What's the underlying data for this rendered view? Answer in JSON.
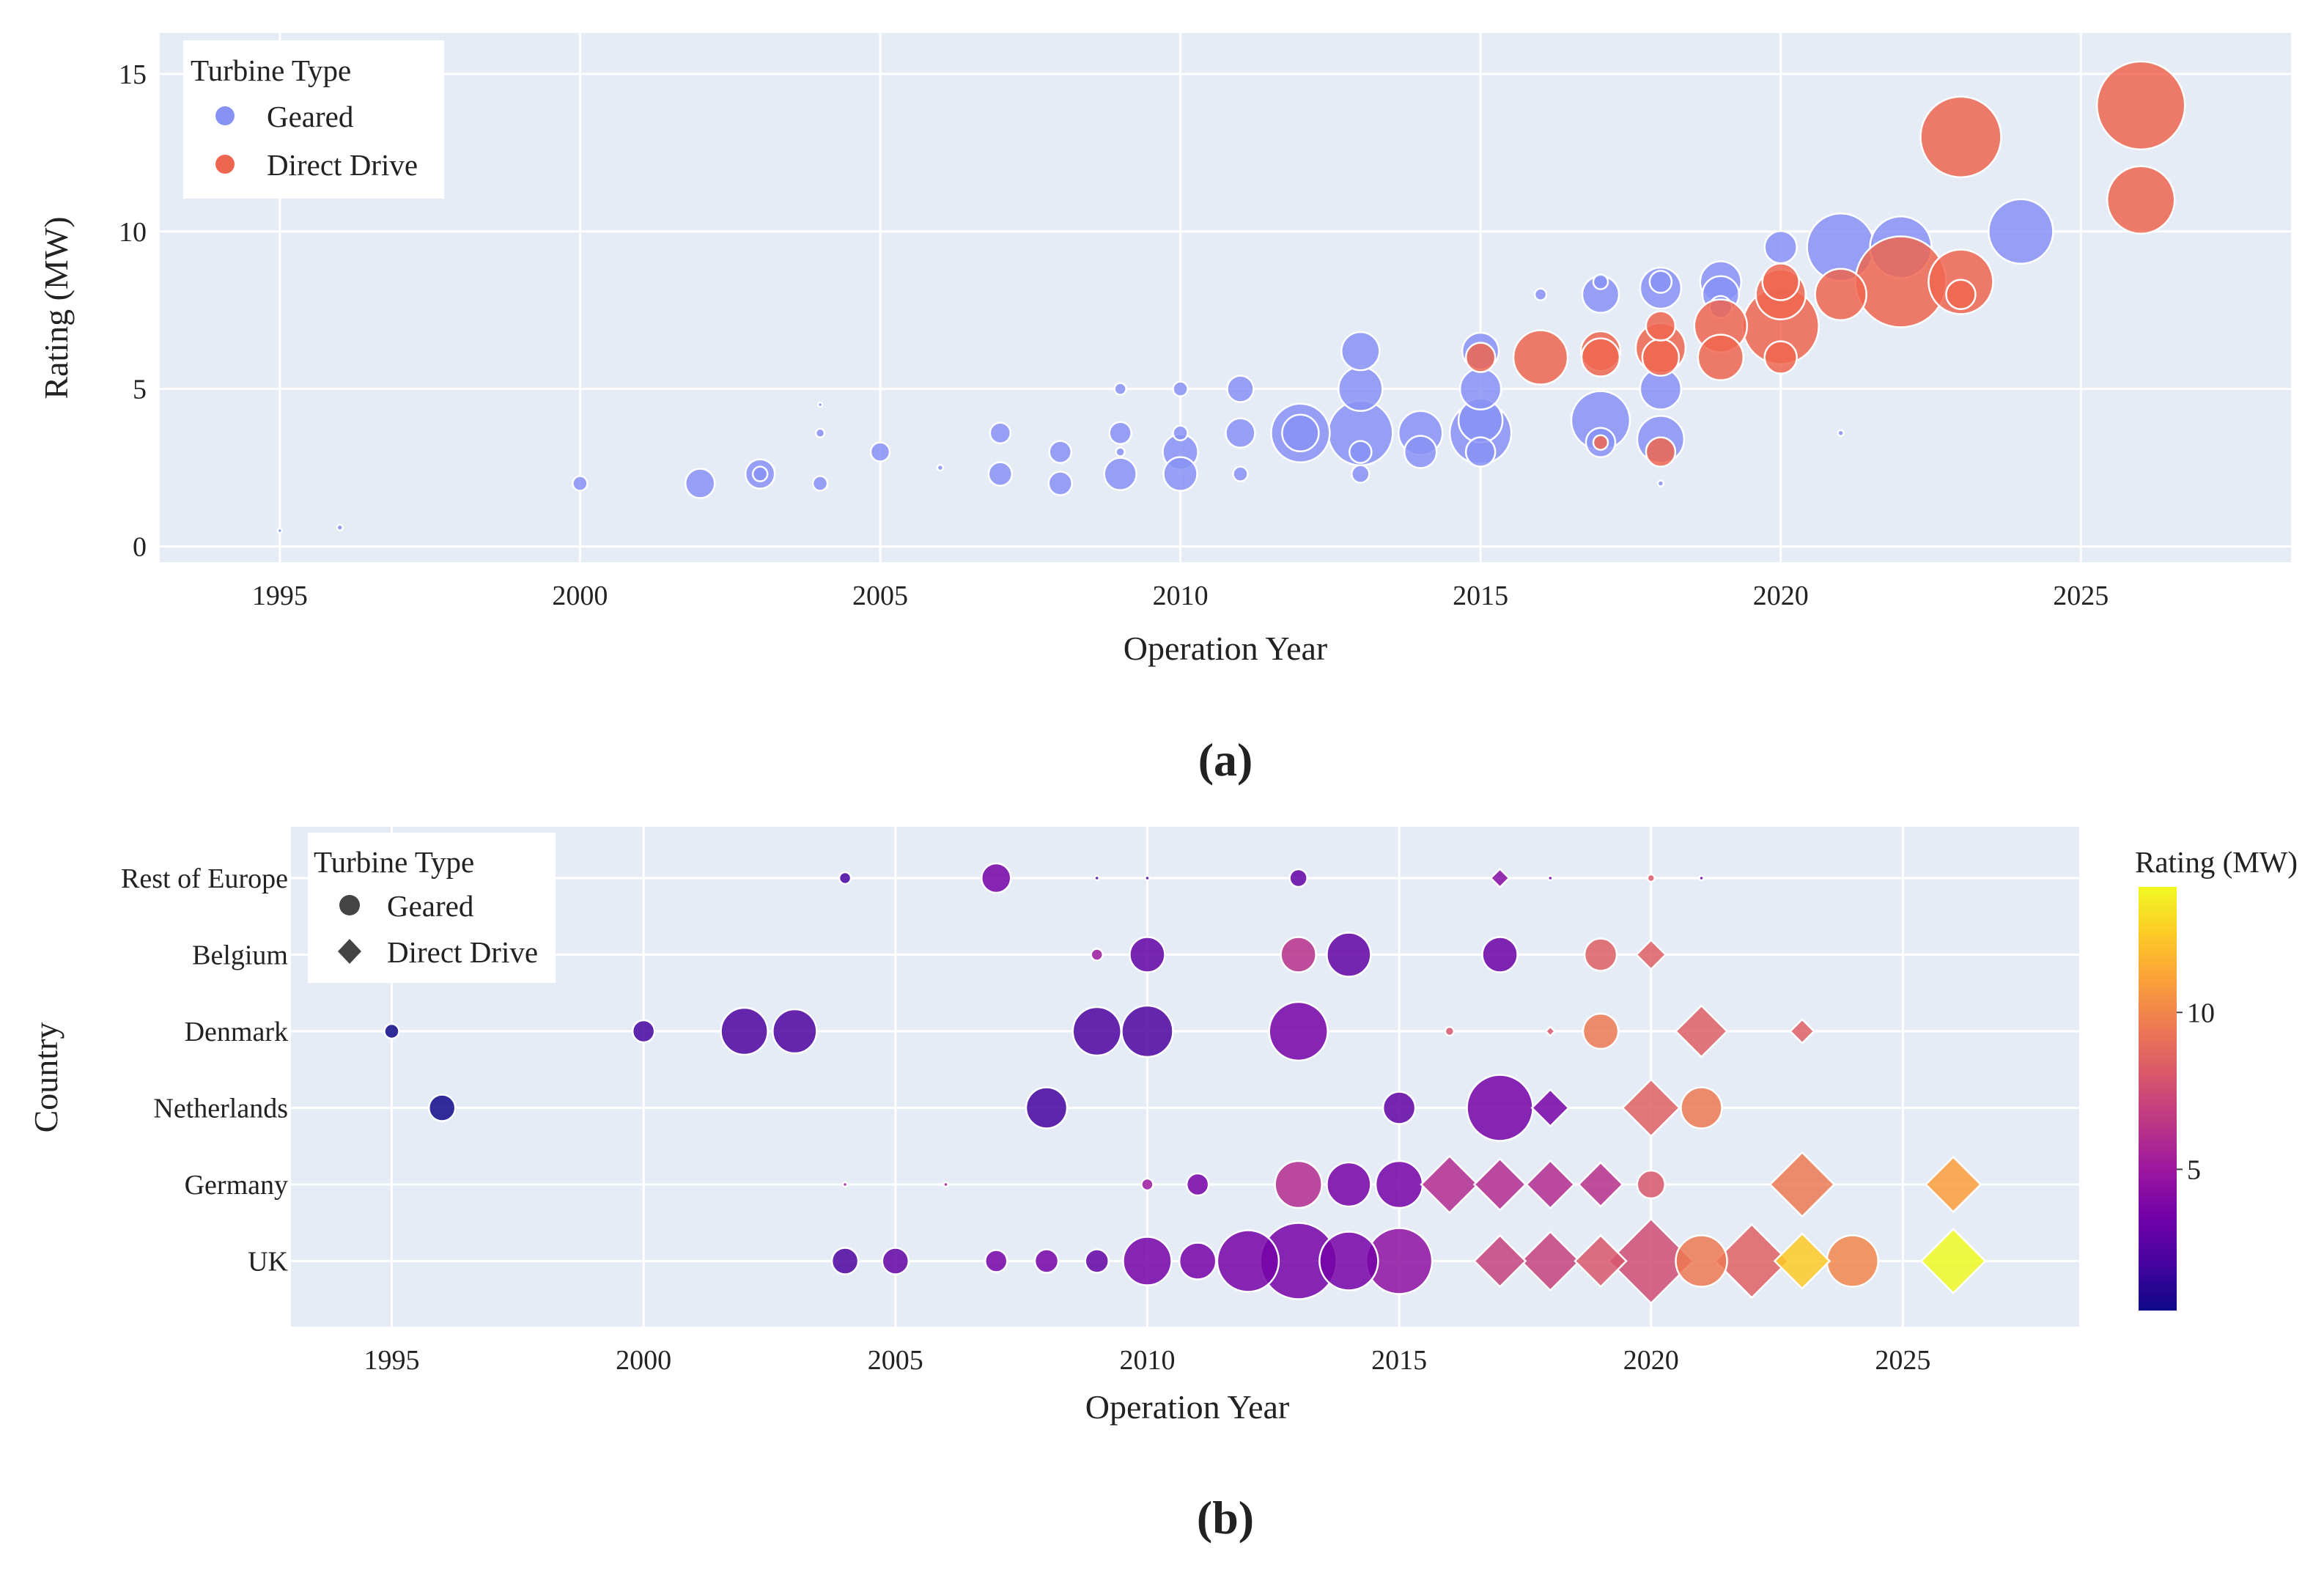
{
  "chart_data": [
    {
      "panel": "a",
      "caption": "(a)",
      "type": "scatter",
      "encoding": "bubble size ~ wind farm capacity; color = turbine type",
      "xlabel": "Operation Year",
      "ylabel": "Rating (MW)",
      "xlim": [
        1993,
        2028.5
      ],
      "ylim": [
        -0.5,
        16.3
      ],
      "xticks": [
        1995,
        2000,
        2005,
        2010,
        2015,
        2020,
        2025
      ],
      "yticks": [
        0,
        5,
        10,
        15
      ],
      "grid": true,
      "legend": {
        "title": "Turbine Type",
        "position": "top-left",
        "entries": [
          "Geared",
          "Direct Drive"
        ]
      },
      "colors": {
        "Geared": "#8892f5",
        "Direct Drive": "#ee6650"
      },
      "series": [
        {
          "name": "Geared",
          "points": [
            [
              1995,
              0.5,
              0.3
            ],
            [
              1996,
              0.6,
              0.4
            ],
            [
              2000,
              2,
              1
            ],
            [
              2002,
              2,
              2
            ],
            [
              2003,
              2.3,
              2
            ],
            [
              2003,
              2.3,
              1
            ],
            [
              2004,
              2,
              1
            ],
            [
              2004,
              3.6,
              0.6
            ],
            [
              2004,
              4.5,
              0.3
            ],
            [
              2005,
              3,
              1.3
            ],
            [
              2006,
              2.5,
              0.4
            ],
            [
              2007,
              3.6,
              1.4
            ],
            [
              2007,
              2.3,
              1.6
            ],
            [
              2008,
              3,
              1.5
            ],
            [
              2008,
              2,
              1.6
            ],
            [
              2009,
              2.3,
              2.2
            ],
            [
              2009,
              3,
              0.6
            ],
            [
              2009,
              3.6,
              1.5
            ],
            [
              2009,
              5,
              0.8
            ],
            [
              2010,
              2.3,
              2.3
            ],
            [
              2010,
              3,
              2.4
            ],
            [
              2010,
              3.6,
              1
            ],
            [
              2010,
              5,
              1
            ],
            [
              2011,
              2.3,
              1
            ],
            [
              2011,
              3.6,
              2
            ],
            [
              2011,
              5,
              1.8
            ],
            [
              2012,
              3.6,
              4
            ],
            [
              2012,
              3.6,
              2.5
            ],
            [
              2013,
              3.6,
              4.4
            ],
            [
              2013,
              3,
              1.5
            ],
            [
              2013,
              5,
              3
            ],
            [
              2013,
              6.2,
              2.6
            ],
            [
              2013,
              2.3,
              1.2
            ],
            [
              2014,
              3.6,
              3
            ],
            [
              2014,
              3,
              2.2
            ],
            [
              2015,
              3.6,
              4.2
            ],
            [
              2015,
              4,
              3
            ],
            [
              2015,
              5,
              2.8
            ],
            [
              2015,
              6.2,
              2.5
            ],
            [
              2015,
              3,
              2
            ],
            [
              2016,
              8,
              0.8
            ],
            [
              2017,
              4,
              4
            ],
            [
              2017,
              3.3,
              2
            ],
            [
              2017,
              8,
              2.5
            ],
            [
              2017,
              8.4,
              1
            ],
            [
              2018,
              5,
              2.8
            ],
            [
              2018,
              3.4,
              3.2
            ],
            [
              2018,
              8.2,
              2.8
            ],
            [
              2018,
              8.4,
              1.5
            ],
            [
              2018,
              2,
              0.4
            ],
            [
              2019,
              8.4,
              2.8
            ],
            [
              2019,
              8,
              2.5
            ],
            [
              2019,
              7.6,
              1.5
            ],
            [
              2020,
              9.5,
              2.2
            ],
            [
              2021,
              9.5,
              4.6
            ],
            [
              2021,
              3.6,
              0.4
            ],
            [
              2022,
              9.5,
              4.2
            ],
            [
              2024,
              10,
              4.4
            ]
          ]
        },
        {
          "name": "Direct Drive",
          "points": [
            [
              2015,
              6,
              2
            ],
            [
              2016,
              6,
              3.7
            ],
            [
              2017,
              6,
              2.6
            ],
            [
              2017,
              6.2,
              2.7
            ],
            [
              2017,
              3.3,
              1
            ],
            [
              2018,
              6,
              2.5
            ],
            [
              2018,
              6.3,
              3.4
            ],
            [
              2018,
              7,
              2
            ],
            [
              2018,
              3,
              2
            ],
            [
              2019,
              7,
              3.6
            ],
            [
              2019,
              6,
              3.1
            ],
            [
              2020,
              8.4,
              2.5
            ],
            [
              2020,
              8,
              3.4
            ],
            [
              2020,
              7,
              5.2
            ],
            [
              2020,
              6,
              2.2
            ],
            [
              2021,
              8,
              3.5
            ],
            [
              2022,
              8.4,
              6.2
            ],
            [
              2023,
              8.4,
              4.4
            ],
            [
              2023,
              8,
              2
            ],
            [
              2023,
              13,
              5.5
            ],
            [
              2026,
              14,
              6
            ],
            [
              2026,
              11,
              4.6
            ]
          ]
        }
      ]
    },
    {
      "panel": "b",
      "caption": "(b)",
      "type": "scatter",
      "encoding": "bubble size ~ wind farm capacity; color = rating (MW); marker = turbine type",
      "xlabel": "Operation Year",
      "ylabel": "Country",
      "xlim": [
        1993,
        2028.5
      ],
      "xticks": [
        1995,
        2000,
        2005,
        2010,
        2015,
        2020,
        2025
      ],
      "categories": [
        "Rest of Europe",
        "Belgium",
        "Denmark",
        "Netherlands",
        "Germany",
        "UK"
      ],
      "grid": true,
      "legend": {
        "title": "Turbine Type",
        "position": "top-left",
        "entries": [
          "Geared",
          "Direct Drive"
        ]
      },
      "colorbar": {
        "title": "Rating (MW)",
        "range": [
          0.5,
          14
        ],
        "ticks": [
          5,
          10
        ],
        "colorscale": "plasma"
      },
      "points": [
        [
          "Rest of Europe",
          2004,
          2,
          0.8,
          "Geared"
        ],
        [
          "Rest of Europe",
          2007,
          3.6,
          2,
          "Geared"
        ],
        [
          "Rest of Europe",
          2009,
          2.3,
          0.3,
          "Geared"
        ],
        [
          "Rest of Europe",
          2010,
          2.3,
          0.3,
          "Geared"
        ],
        [
          "Rest of Europe",
          2013,
          3,
          1.2,
          "Geared"
        ],
        [
          "Rest of Europe",
          2017,
          4.2,
          1,
          "Direct Drive"
        ],
        [
          "Rest of Europe",
          2018,
          3.6,
          0.3,
          "Geared"
        ],
        [
          "Rest of Europe",
          2020,
          8,
          0.5,
          "Geared"
        ],
        [
          "Rest of Europe",
          2021,
          3.6,
          0.3,
          "Geared"
        ],
        [
          "Belgium",
          2009,
          5,
          0.8,
          "Geared"
        ],
        [
          "Belgium",
          2010,
          3,
          2.4,
          "Geared"
        ],
        [
          "Belgium",
          2013,
          6.2,
          2.4,
          "Geared"
        ],
        [
          "Belgium",
          2014,
          3,
          3,
          "Geared"
        ],
        [
          "Belgium",
          2017,
          3.3,
          2.4,
          "Geared"
        ],
        [
          "Belgium",
          2019,
          8.4,
          2.2,
          "Geared"
        ],
        [
          "Belgium",
          2020,
          8.4,
          1.6,
          "Direct Drive"
        ],
        [
          "Denmark",
          1995,
          0.5,
          1,
          "Geared"
        ],
        [
          "Denmark",
          2000,
          2,
          1.5,
          "Geared"
        ],
        [
          "Denmark",
          2002,
          2.3,
          3.2,
          "Geared"
        ],
        [
          "Denmark",
          2003,
          2.3,
          3,
          "Geared"
        ],
        [
          "Denmark",
          2009,
          2.3,
          3.3,
          "Geared"
        ],
        [
          "Denmark",
          2010,
          2.3,
          3.5,
          "Geared"
        ],
        [
          "Denmark",
          2013,
          3.6,
          4,
          "Geared"
        ],
        [
          "Denmark",
          2016,
          8,
          0.6,
          "Geared"
        ],
        [
          "Denmark",
          2018,
          8,
          0.5,
          "Direct Drive"
        ],
        [
          "Denmark",
          2019,
          9.5,
          2.4,
          "Geared"
        ],
        [
          "Denmark",
          2021,
          8.4,
          2.8,
          "Direct Drive"
        ],
        [
          "Denmark",
          2023,
          8.4,
          1.3,
          "Direct Drive"
        ],
        [
          "Netherlands",
          1996,
          0.6,
          1.8,
          "Geared"
        ],
        [
          "Netherlands",
          2008,
          2,
          2.8,
          "Geared"
        ],
        [
          "Netherlands",
          2015,
          3,
          2.2,
          "Geared"
        ],
        [
          "Netherlands",
          2017,
          3.6,
          4.5,
          "Geared"
        ],
        [
          "Netherlands",
          2018,
          3.6,
          2,
          "Direct Drive"
        ],
        [
          "Netherlands",
          2020,
          8.5,
          3.1,
          "Direct Drive"
        ],
        [
          "Netherlands",
          2021,
          9.5,
          2.8,
          "Geared"
        ],
        [
          "Germany",
          2004,
          5,
          0.3,
          "Geared"
        ],
        [
          "Germany",
          2006,
          5,
          0.3,
          "Geared"
        ],
        [
          "Germany",
          2010,
          5,
          0.8,
          "Geared"
        ],
        [
          "Germany",
          2011,
          3.6,
          1.5,
          "Geared"
        ],
        [
          "Germany",
          2013,
          6,
          3.2,
          "Geared"
        ],
        [
          "Germany",
          2014,
          3.6,
          3,
          "Geared"
        ],
        [
          "Germany",
          2015,
          3.6,
          3.2,
          "Geared"
        ],
        [
          "Germany",
          2016,
          6,
          3.1,
          "Direct Drive"
        ],
        [
          "Germany",
          2017,
          6,
          2.8,
          "Direct Drive"
        ],
        [
          "Germany",
          2018,
          6,
          2.6,
          "Direct Drive"
        ],
        [
          "Germany",
          2019,
          6.2,
          2.4,
          "Direct Drive"
        ],
        [
          "Germany",
          2020,
          8,
          1.9,
          "Geared"
        ],
        [
          "Germany",
          2023,
          9.5,
          3.5,
          "Direct Drive"
        ],
        [
          "Germany",
          2026,
          11,
          3,
          "Direct Drive"
        ],
        [
          "UK",
          2004,
          2.3,
          1.8,
          "Geared"
        ],
        [
          "UK",
          2005,
          3,
          1.8,
          "Geared"
        ],
        [
          "UK",
          2007,
          3.6,
          1.5,
          "Geared"
        ],
        [
          "UK",
          2008,
          3.6,
          1.6,
          "Geared"
        ],
        [
          "UK",
          2009,
          3,
          1.6,
          "Geared"
        ],
        [
          "UK",
          2010,
          3.6,
          3.3,
          "Geared"
        ],
        [
          "UK",
          2011,
          3.6,
          2.5,
          "Geared"
        ],
        [
          "UK",
          2012,
          3.6,
          4.2,
          "Geared"
        ],
        [
          "UK",
          2013,
          3.6,
          5.2,
          "Geared"
        ],
        [
          "UK",
          2014,
          3.6,
          4,
          "Geared"
        ],
        [
          "UK",
          2015,
          4.5,
          4.5,
          "Geared"
        ],
        [
          "UK",
          2017,
          7,
          2.8,
          "Direct Drive"
        ],
        [
          "UK",
          2018,
          7,
          3.2,
          "Direct Drive"
        ],
        [
          "UK",
          2019,
          8,
          2.8,
          "Direct Drive"
        ],
        [
          "UK",
          2020,
          7.5,
          4.6,
          "Direct Drive"
        ],
        [
          "UK",
          2021,
          9.5,
          3.5,
          "Geared"
        ],
        [
          "UK",
          2022,
          8.5,
          4,
          "Direct Drive"
        ],
        [
          "UK",
          2023,
          12.5,
          3,
          "Direct Drive"
        ],
        [
          "UK",
          2024,
          10,
          3.5,
          "Geared"
        ],
        [
          "UK",
          2026,
          14,
          3.5,
          "Direct Drive"
        ]
      ]
    }
  ]
}
